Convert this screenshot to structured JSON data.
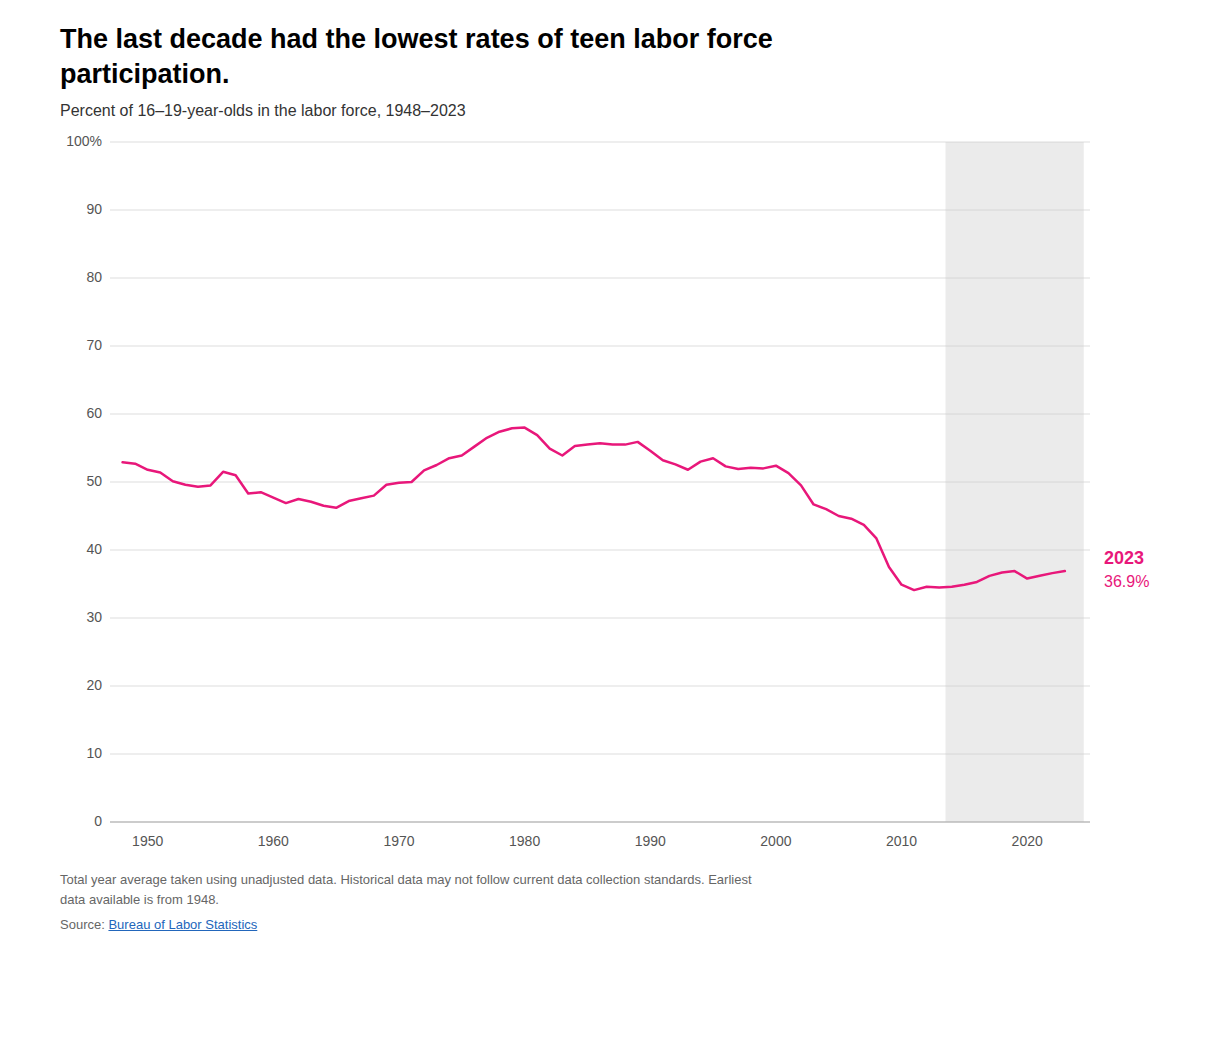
{
  "chart_data": {
    "type": "line",
    "title": "The last decade had the lowest rates of teen labor force participation.",
    "subtitle": "Percent of 16–19-year-olds in the labor force, 1948–2023",
    "note": "Total year average taken using unadjusted data. Historical data may not follow current data collection standards. Earliest\ndata available is from 1948.",
    "source": "Source:",
    "source_link": "Bureau of Labor Statistics",
    "color": "#e8177a",
    "highlight": {
      "from": 2013.5,
      "to": 2024.5,
      "color": "#ebebeb"
    },
    "annotations": [
      {
        "x": 2023,
        "y": 36.9,
        "text": "2023",
        "color": "#e8177a"
      },
      {
        "x": 2023,
        "y": 36.9,
        "text": "36.9%",
        "color": "#e8177a"
      }
    ],
    "x": [
      1948,
      1949,
      1950,
      1951,
      1952,
      1953,
      1954,
      1955,
      1956,
      1957,
      1958,
      1959,
      1960,
      1961,
      1962,
      1963,
      1964,
      1965,
      1966,
      1967,
      1968,
      1969,
      1970,
      1971,
      1972,
      1973,
      1974,
      1975,
      1976,
      1977,
      1978,
      1979,
      1980,
      1981,
      1982,
      1983,
      1984,
      1985,
      1986,
      1987,
      1988,
      1989,
      1990,
      1991,
      1992,
      1993,
      1994,
      1995,
      1996,
      1997,
      1998,
      1999,
      2000,
      2001,
      2002,
      2003,
      2004,
      2005,
      2006,
      2007,
      2008,
      2009,
      2010,
      2011,
      2012,
      2013,
      2014,
      2015,
      2016,
      2017,
      2018,
      2019,
      2020,
      2021,
      2022,
      2023
    ],
    "values": [
      52.9,
      52.7,
      51.8,
      51.4,
      50.1,
      49.6,
      49.3,
      49.5,
      51.5,
      51.0,
      48.3,
      48.5,
      47.7,
      46.9,
      47.5,
      47.1,
      46.5,
      46.2,
      47.2,
      47.6,
      48.0,
      49.6,
      49.9,
      50.0,
      51.7,
      52.5,
      53.5,
      53.9,
      55.2,
      56.5,
      57.4,
      57.9,
      58.0,
      56.9,
      54.9,
      53.9,
      55.3,
      55.5,
      55.7,
      55.5,
      55.5,
      55.9,
      54.6,
      53.2,
      52.6,
      51.8,
      53.0,
      53.5,
      52.3,
      51.9,
      52.1,
      52.0,
      52.4,
      51.3,
      49.5,
      46.7,
      46.0,
      45.0,
      44.6,
      43.7,
      41.7,
      37.5,
      34.9,
      34.1,
      34.6,
      34.5,
      34.6,
      34.9,
      35.3,
      36.2,
      36.7,
      36.9,
      35.8,
      36.2,
      36.6,
      36.9
    ],
    "xlim": [
      1947,
      2025
    ],
    "xticks": [
      1950,
      1960,
      1970,
      1980,
      1990,
      2000,
      2010,
      2020
    ],
    "ylim": [
      0,
      100
    ],
    "yticks": [
      0,
      10,
      20,
      30,
      40,
      50,
      60,
      70,
      80,
      90,
      {
        "value": 100,
        "label": "100%"
      }
    ],
    "grid": true
  }
}
